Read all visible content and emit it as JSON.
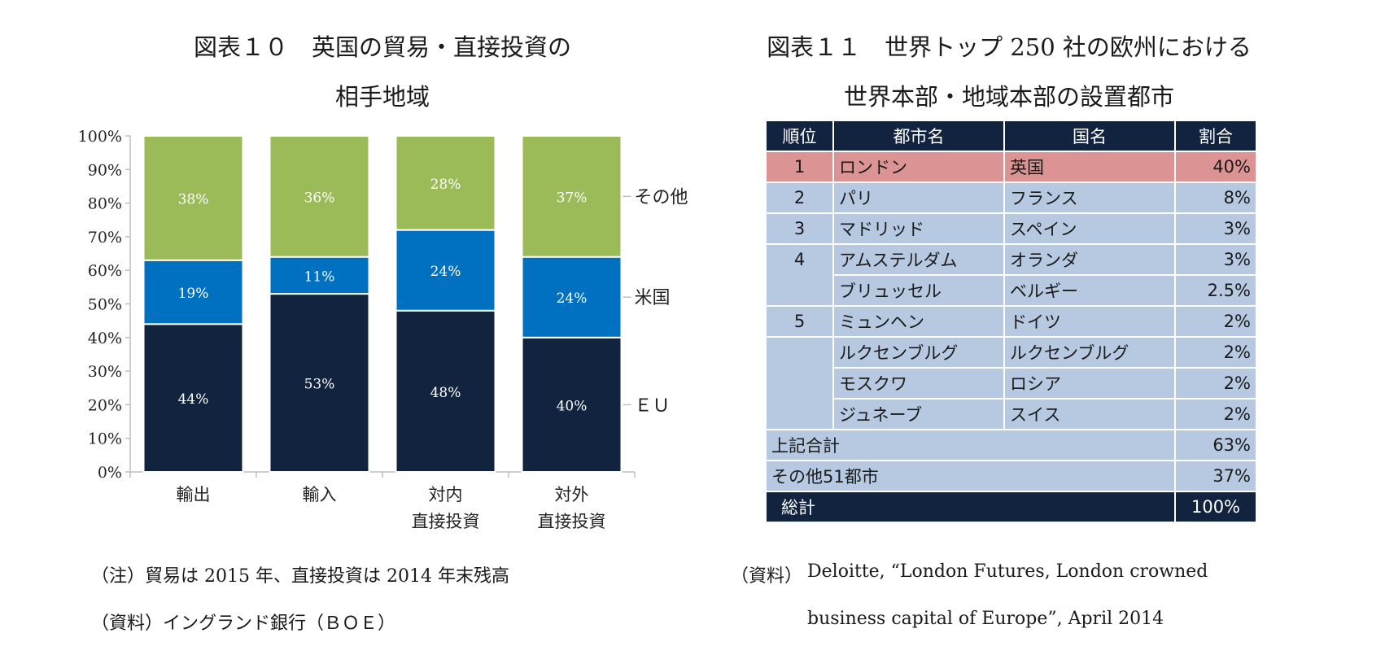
{
  "fig10": {
    "title_line1": "図表１０　英国の貿易・直接投資の",
    "title_line2": "相手地域",
    "note": "（注）貿易は 2015 年、直接投資は 2014 年末残高",
    "source": "（資料）イングランド銀行（ＢＯＥ）"
  },
  "chart_data": {
    "type": "bar",
    "stacked": true,
    "categories": [
      [
        "輸出"
      ],
      [
        "輸入"
      ],
      [
        "対内",
        "直接投資"
      ],
      [
        "対外",
        "直接投資"
      ]
    ],
    "series": [
      {
        "name": "ＥＵ",
        "values": [
          44,
          53,
          48,
          40
        ],
        "labels": [
          "44%",
          "53%",
          "48%",
          "40%"
        ],
        "color": "#12233f"
      },
      {
        "name": "米国",
        "values": [
          19,
          11,
          24,
          24
        ],
        "labels": [
          "19%",
          "11%",
          "24%",
          "24%"
        ],
        "color": "#0070c0"
      },
      {
        "name": "その他",
        "values": [
          38,
          36,
          28,
          37
        ],
        "labels": [
          "38%",
          "36%",
          "28%",
          "37%"
        ],
        "color": "#9bbb59"
      }
    ],
    "ylim": [
      0,
      100
    ],
    "yticks": [
      "0%",
      "10%",
      "20%",
      "30%",
      "40%",
      "50%",
      "60%",
      "70%",
      "80%",
      "90%",
      "100%"
    ],
    "legend_position": "right",
    "grid": false
  },
  "fig11": {
    "title_line1": "図表１１　世界トップ 250 社の欧州における",
    "title_line2": "世界本部・地域本部の設置都市",
    "headers": {
      "rank": "順位",
      "city": "都市名",
      "country": "国名",
      "share": "割合"
    },
    "rows": [
      {
        "rank": "1",
        "city": "ロンドン",
        "country": "英国",
        "share": "40%"
      },
      {
        "rank": "2",
        "city": "パリ",
        "country": "フランス",
        "share": "8%"
      },
      {
        "rank": "3",
        "city": "マドリッド",
        "country": "スペイン",
        "share": "3%"
      },
      {
        "rank": "4",
        "city": "アムステルダム",
        "country": "オランダ",
        "share": "3%"
      },
      {
        "rank": "",
        "city": "ブリュッセル",
        "country": "ベルギー",
        "share": "2.5%"
      },
      {
        "rank": "5",
        "city": "ミュンヘン",
        "country": "ドイツ",
        "share": "2%"
      },
      {
        "rank": "",
        "city": "ルクセンブルグ",
        "country": "ルクセンブルグ",
        "share": "2%"
      },
      {
        "rank": "",
        "city": "モスクワ",
        "country": "ロシア",
        "share": "2%"
      },
      {
        "rank": "",
        "city": "ジュネーブ",
        "country": "スイス",
        "share": "2%"
      }
    ],
    "subtotal": {
      "label": "上記合計",
      "share": "63%"
    },
    "others": {
      "label": "その他51都市",
      "share": "37%"
    },
    "total": {
      "label": "総計",
      "share": "100%"
    },
    "source_label": "（資料）",
    "source_line1": "Deloitte, “London Futures, London crowned",
    "source_line2": "business capital of Europe”, April 2014",
    "highlight_color": "#dc9394",
    "row_color": "#b6c9e1",
    "header_color": "#12233f"
  }
}
